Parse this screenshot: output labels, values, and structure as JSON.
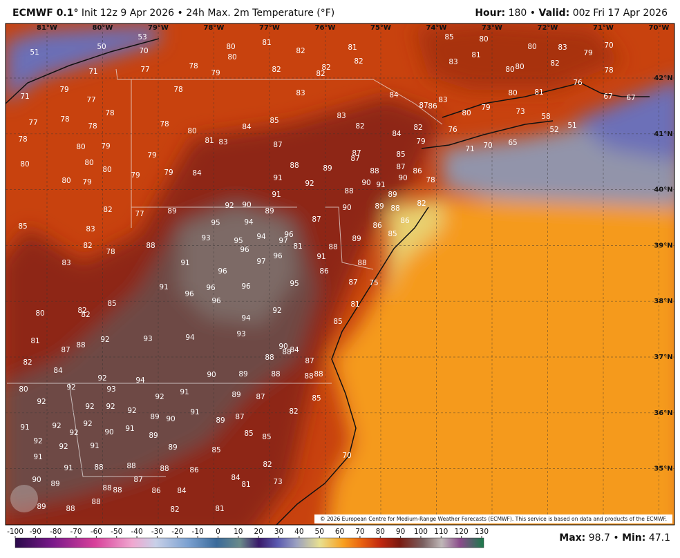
{
  "header": {
    "model": "ECMWF 0.1°",
    "run": "Init 12z 9 Apr 2026",
    "sep": "•",
    "product": "24h Max. 2m Temperature (°F)",
    "hour_label": "Hour:",
    "hour": 180,
    "valid_label": "Valid:",
    "valid": "00z Fri 17 Apr 2026"
  },
  "longitudes": [
    "81°W",
    "80°W",
    "79°W",
    "78°W",
    "77°W",
    "76°W",
    "75°W",
    "74°W",
    "73°W",
    "72°W",
    "71°W",
    "70°W"
  ],
  "latitudes": [
    "42°N",
    "41°N",
    "40°N",
    "39°N",
    "38°N",
    "37°N",
    "36°N",
    "35°N"
  ],
  "map_labels": [
    51,
    50,
    53,
    70,
    71,
    77,
    71,
    79,
    77,
    78,
    77,
    78,
    78,
    78,
    80,
    79,
    80,
    80,
    80,
    79,
    78,
    78,
    78,
    79,
    80,
    80,
    81,
    82,
    82,
    82,
    82,
    81,
    82,
    83,
    84,
    87,
    86,
    83,
    85,
    83,
    81,
    80,
    80,
    83,
    79,
    70,
    80,
    80,
    82,
    78,
    80,
    81,
    76,
    67,
    67,
    80,
    79,
    73,
    58,
    52,
    51,
    76,
    71,
    70,
    65,
    82,
    82,
    84,
    83,
    85,
    84,
    83,
    81,
    80,
    87,
    87,
    87,
    79,
    85,
    88,
    89,
    88,
    87,
    86,
    90,
    78,
    91,
    92,
    90,
    91,
    88,
    89,
    91,
    84,
    79,
    79,
    79,
    80,
    82,
    77,
    89,
    92,
    90,
    89,
    90,
    89,
    88,
    82,
    95,
    94,
    87,
    86,
    86,
    85,
    83,
    93,
    94,
    95,
    96,
    97,
    96,
    81,
    88,
    89,
    85,
    82,
    78,
    88,
    96,
    97,
    91,
    83,
    91,
    96,
    86,
    88,
    91,
    96,
    96,
    95,
    87,
    75,
    96,
    96,
    85,
    82,
    82,
    80,
    92,
    94,
    81,
    85,
    81,
    87,
    88,
    92,
    93,
    93,
    94,
    90,
    88,
    84,
    88,
    87,
    82,
    84,
    92,
    94,
    90,
    89,
    88,
    88,
    88,
    80,
    92,
    92,
    93,
    92,
    91,
    89,
    87,
    85,
    92,
    92,
    92,
    89,
    90,
    91,
    89,
    87,
    82,
    91,
    92,
    92,
    92,
    90,
    91,
    89,
    85,
    85,
    92,
    92,
    91,
    89,
    85,
    91,
    91,
    88,
    88,
    88,
    86,
    82,
    70,
    90,
    89,
    88,
    88,
    87,
    84,
    81,
    73,
    89,
    88,
    88,
    86,
    84,
    82,
    81
  ],
  "copyright": "© 2026 European Centre for Medium-Range Weather Forecasts (ECMWF). This service is based on data and products of the ECMWF.",
  "colorbar_ticks": [
    -100,
    -90,
    -80,
    -70,
    -60,
    -50,
    -40,
    -30,
    -20,
    -10,
    0,
    10,
    20,
    30,
    40,
    50,
    60,
    70,
    80,
    90,
    100,
    110,
    120,
    130
  ],
  "footer": {
    "max_label": "Max:",
    "max": 98.7,
    "sep": "•",
    "min_label": "Min:",
    "min": 47.1
  }
}
